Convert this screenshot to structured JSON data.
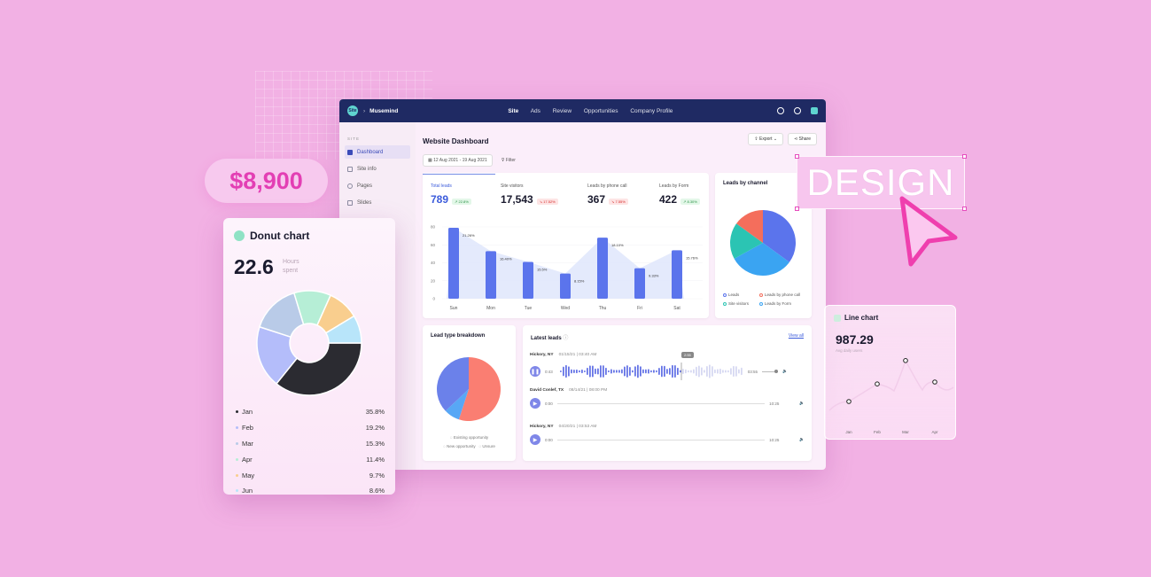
{
  "app": {
    "brand": "Musemind",
    "logo_text": "Site",
    "nav": [
      "Site",
      "Ads",
      "Review",
      "Opportunities",
      "Company Profile"
    ],
    "nav_active": "Site"
  },
  "sidebar": {
    "section": "SITE",
    "items": [
      {
        "label": "Dashboard",
        "active": true
      },
      {
        "label": "Site info"
      },
      {
        "label": "Pages"
      },
      {
        "label": "Slides"
      }
    ]
  },
  "dashboard": {
    "title": "Website Dashboard",
    "export_label": "Export",
    "share_label": "Share",
    "date_range": "12 Aug 2021 - 19 Aug 2021",
    "filter_label": "Filter",
    "stats": [
      {
        "label": "Total leads",
        "value": "789",
        "change": "↗ 22.8%",
        "dir": "up"
      },
      {
        "label": "Site visitors",
        "value": "17,543",
        "change": "↘ 17.52%",
        "dir": "down"
      },
      {
        "label": "Leads by phone call",
        "value": "367",
        "change": "↘ 7.55%",
        "dir": "down"
      },
      {
        "label": "Leads by Form",
        "value": "422",
        "change": "↗ 8.30%",
        "dir": "up"
      }
    ],
    "leads_by_channel": {
      "title": "Leads by channel",
      "legend": [
        "Leads",
        "Leads by phone call",
        "Site visitors",
        "Leads by Form"
      ]
    },
    "lead_type": {
      "title": "Lead type breakdown",
      "legend": [
        "Existing opportunity",
        "New opportunity",
        "Unsure"
      ]
    },
    "latest_leads": {
      "title": "Latest leads",
      "info_icon": "info-icon",
      "view_all": "View all",
      "tooltip": "2:55",
      "rows": [
        {
          "name": "Hickory, NY",
          "date": "01/15/21 | 03:40 AM",
          "elapsed": "0:43",
          "duration": "03:55",
          "playing": true
        },
        {
          "name": "David Conlef, TX",
          "date": "08/14/21 | 08:00 PM",
          "elapsed": "0:00",
          "duration": "10:25",
          "playing": false
        },
        {
          "name": "Hickory, NY",
          "date": "04/20/21 | 03:53 AM",
          "elapsed": "0:00",
          "duration": "10:25",
          "playing": false
        }
      ]
    }
  },
  "chart_data": [
    {
      "type": "bar",
      "categories": [
        "Sun",
        "Mon",
        "Tue",
        "Wed",
        "Thu",
        "Fri",
        "Sat"
      ],
      "values": [
        79,
        53,
        41,
        28,
        68,
        34,
        54
      ],
      "data_labels": [
        "21.26%",
        "16.40%",
        "15.5%",
        "8.15%",
        "18.10%",
        "9.33%",
        "15.76%"
      ],
      "y_ticks": [
        0,
        20,
        40,
        60,
        80
      ],
      "ylim": [
        0,
        80
      ],
      "color": "#5b74ec",
      "area_color": "#dfe6fb"
    },
    {
      "type": "pie",
      "title": "Leads by channel",
      "values": [
        35,
        32,
        18,
        15
      ],
      "colors": [
        "#5b74ec",
        "#3aa4f2",
        "#2bc4b3",
        "#f46e5c"
      ]
    },
    {
      "type": "pie",
      "title": "Lead type breakdown",
      "values": [
        55,
        8,
        37
      ],
      "colors": [
        "#fa7e72",
        "#58a7f5",
        "#6b81ea"
      ]
    },
    {
      "type": "pie",
      "title": "Donut chart",
      "value": "22.6",
      "unit": "Hours spent",
      "categories": [
        "Jan",
        "Feb",
        "Mar",
        "Apr",
        "May",
        "Jun"
      ],
      "values": [
        35.8,
        19.2,
        15.3,
        11.4,
        9.7,
        8.6
      ],
      "labels": [
        "35.8%",
        "19.2%",
        "15.3%",
        "11.4%",
        "9.7%",
        "8.6%"
      ],
      "colors": [
        "#2b2b31",
        "#b4bdfa",
        "#b9cbe8",
        "#b6eed6",
        "#f9ce8e",
        "#b8e5fa"
      ]
    },
    {
      "type": "line",
      "title": "Line chart",
      "value": "987.29",
      "subtitle": "Avg daily users",
      "categories": [
        "Jan",
        "Feb",
        "Mar",
        "Apr"
      ],
      "values": [
        20,
        38,
        62,
        40
      ]
    }
  ],
  "promo": {
    "price": "$8,900",
    "design_word": "DESIGN"
  },
  "colors": {
    "background": "#f2b1e4",
    "navbar": "#1f2a63",
    "accent": "#5b74ec",
    "pink": "#e33fb4"
  }
}
